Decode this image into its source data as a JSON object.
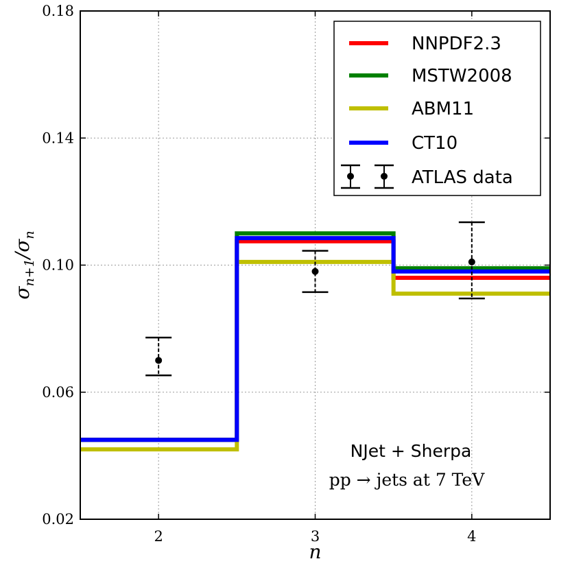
{
  "chart_data": {
    "type": "step",
    "xlabel": "n",
    "ylabel": "σn+1/σn",
    "ylabel_main": "σ",
    "ylabel_sub": "n+1",
    "ylabel_tail": "/σ",
    "ylabel_tail_sub": "n",
    "xlim": [
      1.5,
      4.5
    ],
    "ylim": [
      0.02,
      0.18
    ],
    "xticks": [
      2,
      3,
      4
    ],
    "xtick_labels": [
      "2",
      "3",
      "4"
    ],
    "yticks": [
      0.02,
      0.06,
      0.1,
      0.14,
      0.18
    ],
    "ytick_labels": [
      "0.02",
      "0.06",
      "0.10",
      "0.14",
      "0.18"
    ],
    "grid": true,
    "legend_position": "top-right",
    "series": [
      {
        "name": "NNPDF2.3",
        "color": "#ff0000",
        "bins": [
          1.5,
          2.5,
          3.5,
          4.5
        ],
        "values": [
          0.045,
          0.1075,
          0.096
        ]
      },
      {
        "name": "MSTW2008",
        "color": "#008000",
        "bins": [
          1.5,
          2.5,
          3.5,
          4.5
        ],
        "values": [
          0.045,
          0.11,
          0.099
        ]
      },
      {
        "name": "ABM11",
        "color": "#bfbf00",
        "bins": [
          1.5,
          2.5,
          3.5,
          4.5
        ],
        "values": [
          0.042,
          0.101,
          0.091
        ]
      },
      {
        "name": "CT10",
        "color": "#0000ff",
        "bins": [
          1.5,
          2.5,
          3.5,
          4.5
        ],
        "values": [
          0.045,
          0.1085,
          0.098
        ]
      }
    ],
    "data_points": {
      "name": "ATLAS data",
      "color": "#000000",
      "x": [
        2,
        3,
        4
      ],
      "y": [
        0.07,
        0.098,
        0.101
      ],
      "err_low": [
        0.0047,
        0.0065,
        0.0115
      ],
      "err_high": [
        0.0072,
        0.0065,
        0.0125
      ]
    },
    "annotations": [
      "NJet + Sherpa",
      "pp → jets at 7 TeV"
    ]
  }
}
